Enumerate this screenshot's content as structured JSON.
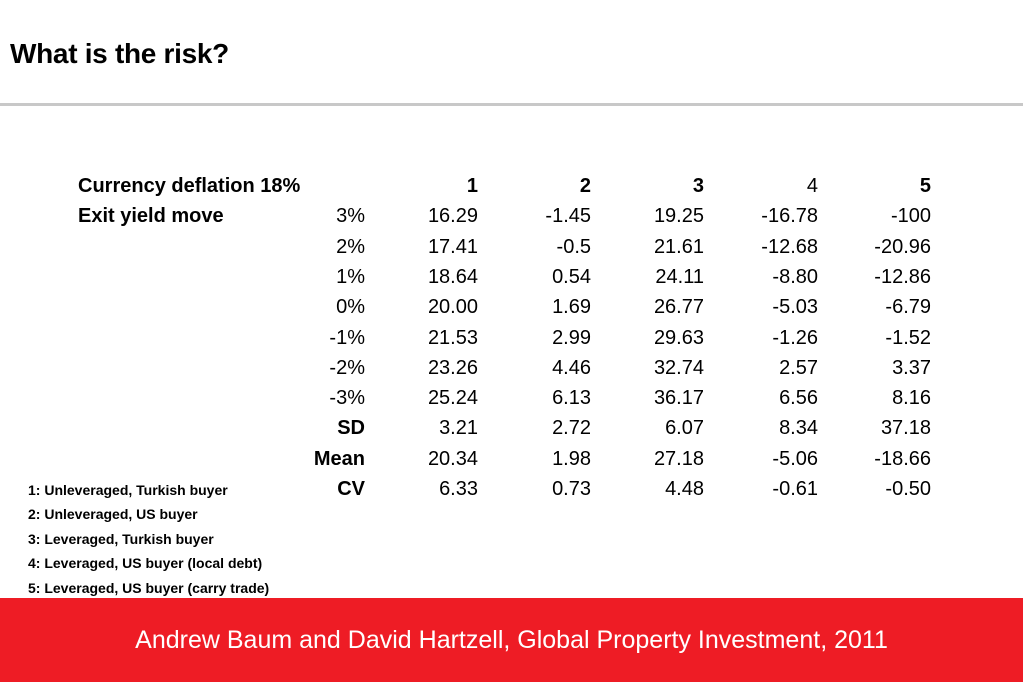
{
  "title": "What is the risk?",
  "table": {
    "header": {
      "label": "Currency deflation 18%",
      "columns": [
        "1",
        "2",
        "3",
        "4",
        "5"
      ]
    },
    "row_group_label": "Exit yield move",
    "rows": [
      {
        "move": "3%",
        "values": [
          "16.29",
          "-1.45",
          "19.25",
          "-16.78",
          "-100"
        ]
      },
      {
        "move": "2%",
        "values": [
          "17.41",
          "-0.5",
          "21.61",
          "-12.68",
          "-20.96"
        ]
      },
      {
        "move": "1%",
        "values": [
          "18.64",
          "0.54",
          "24.11",
          "-8.80",
          "-12.86"
        ]
      },
      {
        "move": "0%",
        "values": [
          "20.00",
          "1.69",
          "26.77",
          "-5.03",
          "-6.79"
        ]
      },
      {
        "move": "-1%",
        "values": [
          "21.53",
          "2.99",
          "29.63",
          "-1.26",
          "-1.52"
        ]
      },
      {
        "move": "-2%",
        "values": [
          "23.26",
          "4.46",
          "32.74",
          "2.57",
          "3.37"
        ]
      },
      {
        "move": "-3%",
        "values": [
          "25.24",
          "6.13",
          "36.17",
          "6.56",
          "8.16"
        ]
      }
    ],
    "stats": [
      {
        "label": "SD",
        "values": [
          "3.21",
          "2.72",
          "6.07",
          "8.34",
          "37.18"
        ]
      },
      {
        "label": "Mean",
        "values": [
          "20.34",
          "1.98",
          "27.18",
          "-5.06",
          "-18.66"
        ]
      },
      {
        "label": "CV",
        "values": [
          "6.33",
          "0.73",
          "4.48",
          "-0.61",
          "-0.50"
        ]
      }
    ]
  },
  "notes": [
    "1: Unleveraged, Turkish buyer",
    "2: Unleveraged, US buyer",
    "3: Leveraged, Turkish buyer",
    "4: Leveraged, US buyer (local debt)",
    "5: Leveraged, US buyer (carry trade)"
  ],
  "footer": "Andrew Baum and David Hartzell, Global Property Investment, 2011",
  "colors": {
    "footer_bg": "#ee1c25",
    "rule": "#c8c8c8"
  }
}
